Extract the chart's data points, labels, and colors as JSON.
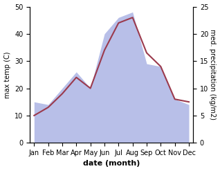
{
  "months": [
    "Jan",
    "Feb",
    "Mar",
    "Apr",
    "May",
    "Jun",
    "Jul",
    "Aug",
    "Sep",
    "Oct",
    "Nov",
    "Dec"
  ],
  "max_temp": [
    10,
    13,
    18,
    24,
    20,
    34,
    44,
    46,
    33,
    28,
    16,
    15
  ],
  "precipitation": [
    7.5,
    7,
    10,
    13,
    10,
    20,
    23,
    24,
    14.5,
    14,
    8,
    7
  ],
  "temp_color": "#9b3a4d",
  "precip_fill_color": "#b8bfe8",
  "ylabel_left": "max temp (C)",
  "ylabel_right": "med. precipitation (kg/m2)",
  "xlabel": "date (month)",
  "ylim_left": [
    0,
    50
  ],
  "ylim_right": [
    0,
    25
  ],
  "yticks_left": [
    0,
    10,
    20,
    30,
    40,
    50
  ],
  "yticks_right": [
    0,
    5,
    10,
    15,
    20,
    25
  ],
  "label_fontsize": 7,
  "tick_fontsize": 7,
  "xlabel_fontsize": 8,
  "linewidth": 1.5,
  "scale_factor": 2.0
}
